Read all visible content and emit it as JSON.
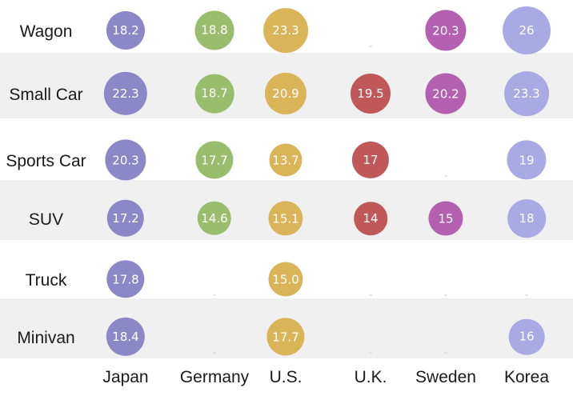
{
  "chart_data": {
    "type": "bubble-matrix",
    "rows": [
      "Wagon",
      "Small Car",
      "Sports Car",
      "SUV",
      "Truck",
      "Minivan"
    ],
    "columns": [
      "Japan",
      "Germany",
      "U.S.",
      "U.K.",
      "Sweden",
      "Korea"
    ],
    "values": [
      [
        18.2,
        18.8,
        23.3,
        null,
        20.3,
        26
      ],
      [
        22.3,
        18.7,
        20.9,
        19.5,
        20.2,
        23.3
      ],
      [
        20.3,
        17.7,
        13.7,
        17,
        null,
        19
      ],
      [
        17.2,
        14.6,
        15.1,
        14,
        15,
        18
      ],
      [
        17.8,
        null,
        15.0,
        null,
        null,
        null
      ],
      [
        18.4,
        null,
        17.7,
        null,
        null,
        16
      ]
    ],
    "labels": [
      [
        "18.2",
        "18.8",
        "23.3",
        "",
        "20.3",
        "26"
      ],
      [
        "22.3",
        "18.7",
        "20.9",
        "19.5",
        "20.2",
        "23.3"
      ],
      [
        "20.3",
        "17.7",
        "13.7",
        "17",
        "",
        "19"
      ],
      [
        "17.2",
        "14.6",
        "15.1",
        "14",
        "15",
        "18"
      ],
      [
        "17.8",
        "",
        "15.0",
        "",
        "",
        ""
      ],
      [
        "18.4",
        "",
        "17.7",
        "",
        "",
        "16"
      ]
    ],
    "column_colors": [
      "#8c88c8",
      "#98bd6c",
      "#d9b459",
      "#c0585a",
      "#b460b0",
      "#a9aae3"
    ],
    "size_encodes_value": true,
    "striped_rows": true
  }
}
